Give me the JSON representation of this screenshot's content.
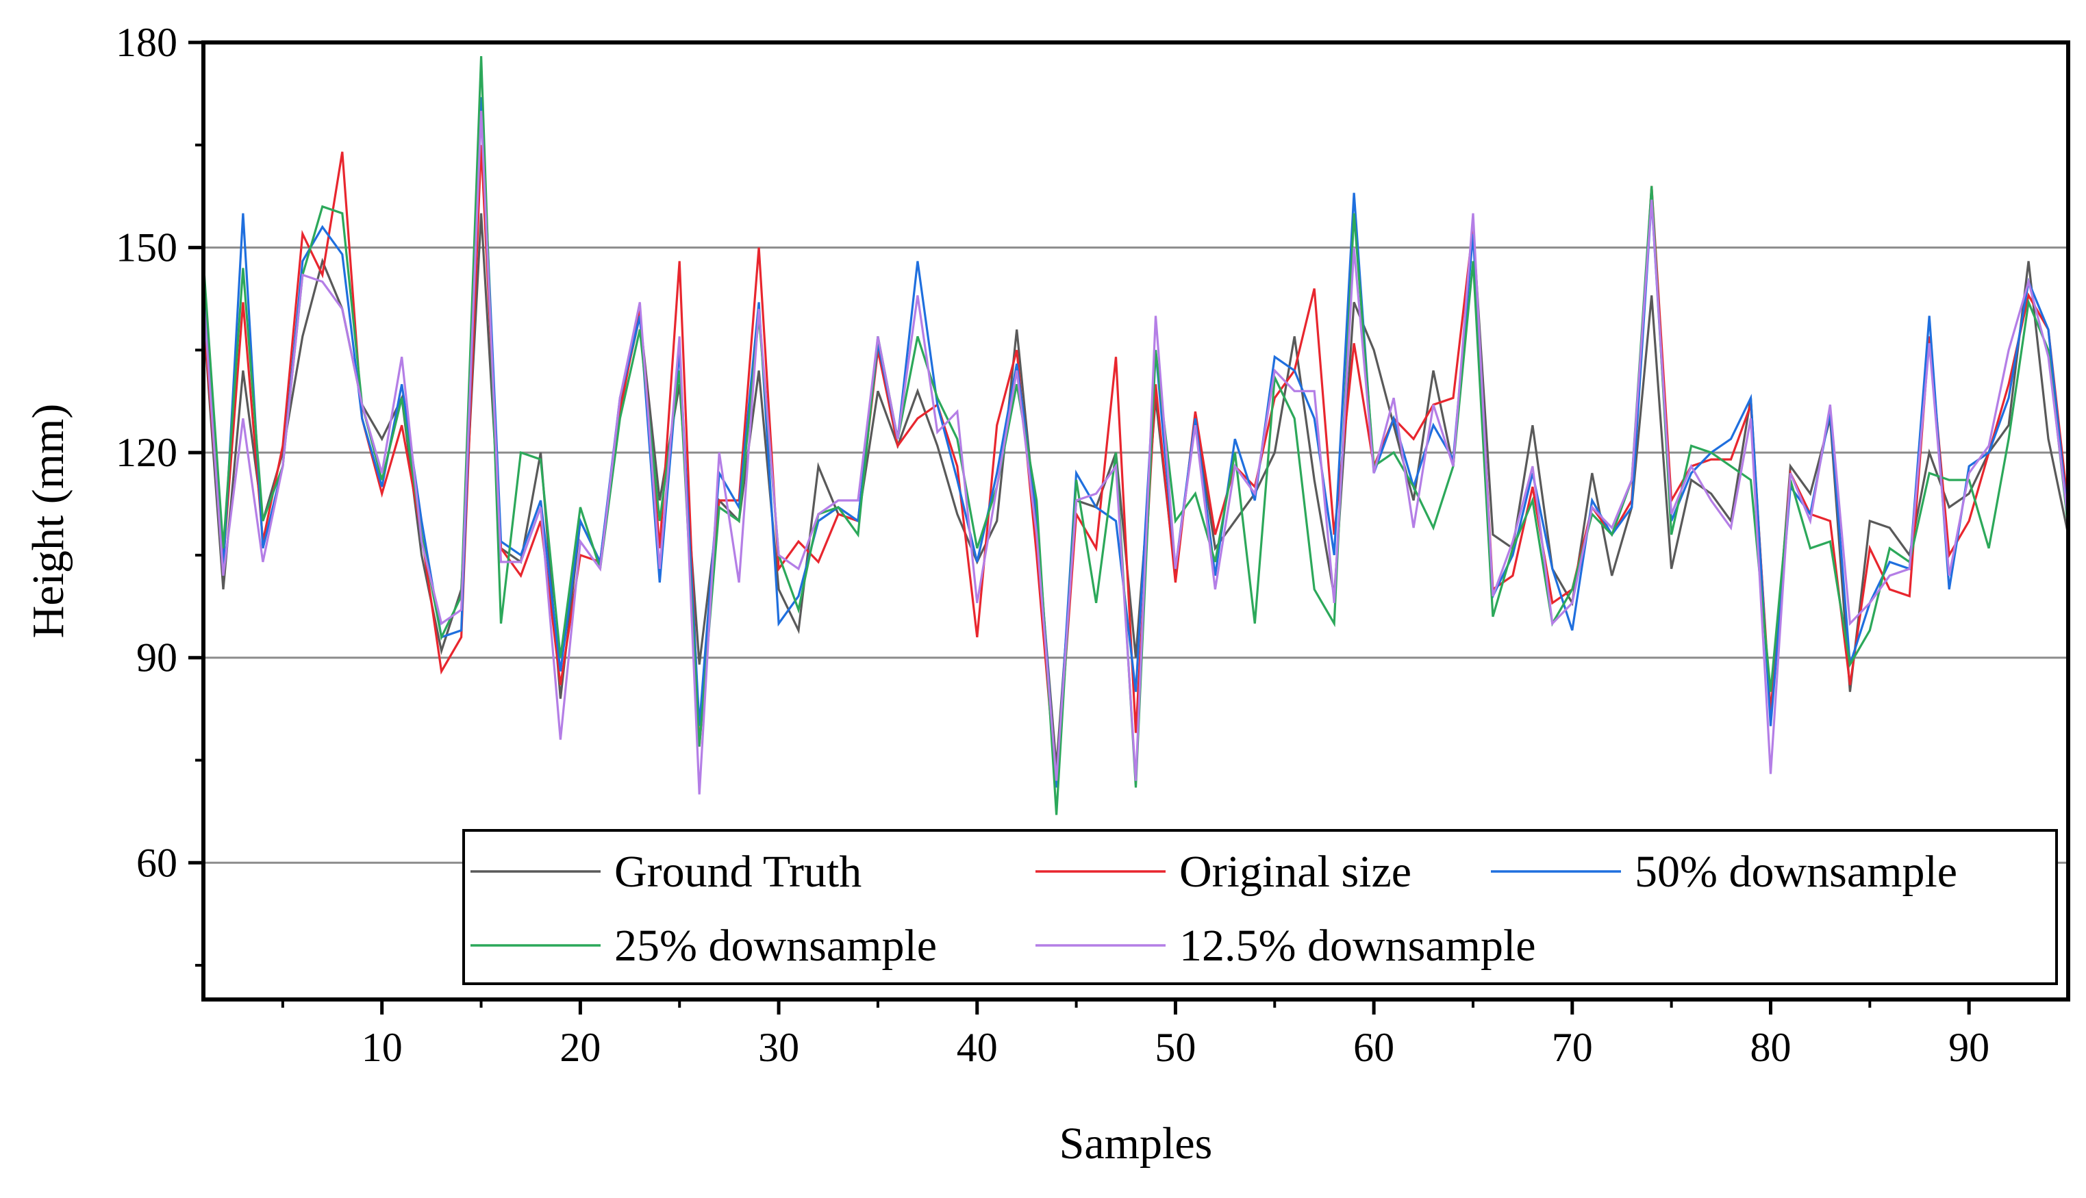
{
  "chart_data": {
    "type": "line",
    "title": "",
    "xlabel": "Samples",
    "ylabel": "Height (mm)",
    "xlim": [
      1,
      95
    ],
    "ylim": [
      40,
      180
    ],
    "xticks": [
      10,
      20,
      30,
      40,
      50,
      60,
      70,
      80,
      90
    ],
    "yticks": [
      60,
      90,
      120,
      150,
      180
    ],
    "grid": "horizontal",
    "legend_position": "bottom-right",
    "series": [
      {
        "name": "Ground Truth",
        "color": "#595959",
        "values": [
          140,
          100,
          132,
          110,
          120,
          137,
          148,
          141,
          127,
          122,
          128,
          105,
          91,
          100,
          155,
          106,
          104,
          120,
          84,
          110,
          104,
          127,
          140,
          113,
          130,
          89,
          113,
          110,
          132,
          100,
          94,
          118,
          111,
          110,
          129,
          121,
          129,
          121,
          111,
          104,
          110,
          138,
          109,
          74,
          113,
          112,
          120,
          90,
          128,
          102,
          125,
          106,
          110,
          114,
          120,
          137,
          116,
          99,
          142,
          135,
          124,
          113,
          132,
          118,
          153,
          108,
          106,
          124,
          103,
          98,
          117,
          102,
          112,
          143,
          103,
          116,
          114,
          110,
          128,
          81,
          118,
          114,
          125,
          85,
          110,
          109,
          105,
          120,
          112,
          114,
          120,
          124,
          148,
          122,
          108
        ]
      },
      {
        "name": "Original size",
        "color": "#e8262e",
        "values": [
          140,
          104,
          142,
          107,
          121,
          152,
          146,
          164,
          125,
          114,
          124,
          108,
          88,
          93,
          165,
          106,
          102,
          110,
          86,
          105,
          104,
          126,
          141,
          106,
          148,
          77,
          113,
          113,
          150,
          103,
          107,
          104,
          111,
          110,
          135,
          121,
          125,
          127,
          118,
          93,
          124,
          135,
          105,
          71,
          111,
          106,
          134,
          79,
          130,
          101,
          126,
          108,
          118,
          115,
          128,
          132,
          144,
          108,
          136,
          118,
          125,
          122,
          127,
          128,
          153,
          100,
          102,
          115,
          98,
          100,
          112,
          108,
          113,
          159,
          113,
          118,
          119,
          119,
          127,
          82,
          117,
          111,
          110,
          86,
          106,
          100,
          99,
          137,
          105,
          110,
          120,
          130,
          143,
          138,
          112
        ]
      },
      {
        "name": "50% downsample",
        "color": "#1f6fde",
        "values": [
          144,
          103,
          155,
          106,
          118,
          148,
          153,
          149,
          125,
          115,
          130,
          110,
          93,
          94,
          172,
          107,
          105,
          113,
          88,
          110,
          104,
          128,
          140,
          101,
          135,
          80,
          117,
          112,
          142,
          95,
          99,
          110,
          112,
          110,
          136,
          122,
          148,
          127,
          116,
          104,
          117,
          133,
          111,
          71,
          117,
          112,
          110,
          85,
          135,
          103,
          125,
          102,
          122,
          113,
          134,
          132,
          125,
          105,
          158,
          117,
          125,
          115,
          124,
          119,
          152,
          99,
          105,
          117,
          103,
          94,
          113,
          108,
          112,
          157,
          110,
          117,
          120,
          122,
          128,
          80,
          115,
          111,
          126,
          89,
          98,
          104,
          103,
          140,
          100,
          118,
          120,
          128,
          145,
          138,
          110
        ]
      },
      {
        "name": "25% downsample",
        "color": "#2ca85a",
        "values": [
          148,
          106,
          147,
          110,
          118,
          146,
          156,
          155,
          127,
          116,
          128,
          108,
          93,
          99,
          178,
          95,
          120,
          119,
          90,
          112,
          103,
          125,
          138,
          110,
          132,
          77,
          112,
          110,
          140,
          105,
          97,
          111,
          112,
          108,
          137,
          122,
          137,
          128,
          122,
          106,
          115,
          130,
          113,
          67,
          116,
          98,
          120,
          71,
          135,
          110,
          114,
          104,
          120,
          95,
          131,
          125,
          100,
          95,
          155,
          118,
          120,
          115,
          109,
          118,
          148,
          96,
          106,
          113,
          95,
          100,
          111,
          108,
          116,
          159,
          108,
          121,
          120,
          118,
          116,
          85,
          116,
          106,
          107,
          89,
          94,
          106,
          104,
          117,
          116,
          116,
          106,
          122,
          142,
          135,
          109
        ]
      },
      {
        "name": "12.5% downsample",
        "color": "#b47ee6",
        "values": [
          143,
          102,
          125,
          104,
          118,
          146,
          145,
          141,
          127,
          117,
          134,
          107,
          95,
          97,
          170,
          104,
          104,
          112,
          78,
          107,
          103,
          128,
          142,
          103,
          137,
          70,
          120,
          101,
          141,
          105,
          103,
          111,
          113,
          113,
          137,
          122,
          143,
          123,
          126,
          98,
          115,
          132,
          108,
          72,
          113,
          114,
          118,
          72,
          140,
          103,
          124,
          100,
          118,
          114,
          132,
          129,
          129,
          98,
          150,
          117,
          128,
          109,
          127,
          118,
          155,
          99,
          107,
          118,
          95,
          98,
          112,
          109,
          116,
          157,
          111,
          118,
          113,
          109,
          125,
          73,
          117,
          110,
          127,
          95,
          98,
          102,
          103,
          136,
          102,
          117,
          121,
          135,
          145,
          134,
          110
        ]
      }
    ]
  }
}
